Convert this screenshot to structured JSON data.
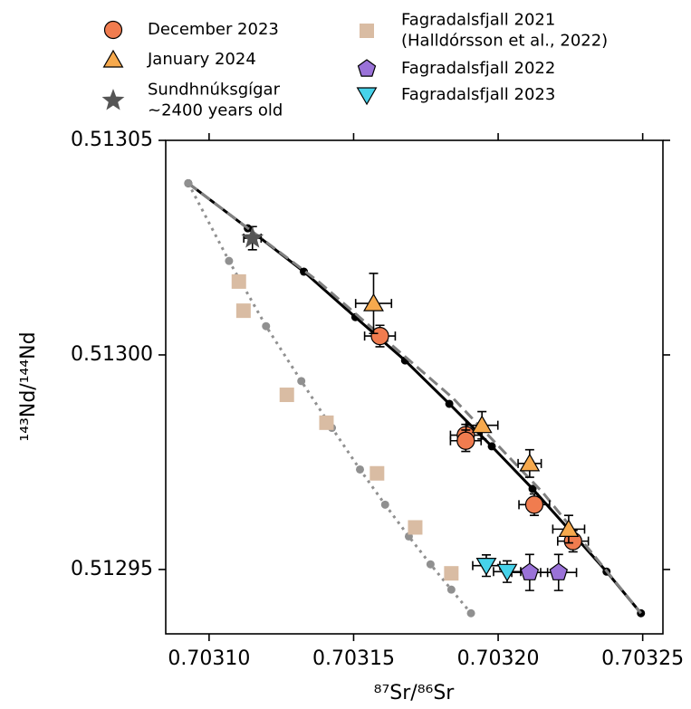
{
  "chart_data": {
    "type": "scatter",
    "x_label": "⁸⁷Sr/⁸⁶Sr",
    "y_label": "¹⁴³Nd/¹⁴⁴Nd",
    "xlim": [
      0.703085,
      0.703257
    ],
    "ylim": [
      0.512935,
      0.51305
    ],
    "xticks": [
      {
        "value": 0.7031,
        "label": "0.70310"
      },
      0.70315,
      {
        "value": 0.7032,
        "label": "0.70320"
      },
      0.70325
    ],
    "yticks": [
      0.51295,
      {
        "value": 0.513,
        "label": "0.51300"
      },
      0.51305
    ],
    "lines": [
      {
        "color": "#000000",
        "style": "solid",
        "markers": true,
        "x": [
          0.7030928,
          0.7031134,
          0.7031328,
          0.7031506,
          0.7031678,
          0.7031831,
          0.7031978,
          0.7032119,
          0.7032375,
          0.7032494
        ],
        "y": [
          0.51304,
          0.5130295,
          0.5130194,
          0.5130088,
          0.5129987,
          0.5129886,
          0.5129787,
          0.5129688,
          0.5129495,
          0.5129398
        ]
      },
      {
        "color": "#808080",
        "style": "dashed",
        "markers": false,
        "x": [
          0.7030928,
          0.7031375,
          0.7031844,
          0.7032156,
          0.7032494
        ],
        "y": [
          0.51304,
          0.5130173,
          0.5129899,
          0.5129678,
          0.5129398
        ]
      },
      {
        "color": "#909090",
        "style": "dotted",
        "markers": true,
        "x": [
          0.7030928,
          0.7031069,
          0.7031197,
          0.7031319,
          0.7031425,
          0.7031522,
          0.7031609,
          0.7031691,
          0.7031766,
          0.7031838,
          0.7031906
        ],
        "y": [
          0.51304,
          0.5130219,
          0.5130067,
          0.5129939,
          0.512983,
          0.5129733,
          0.5129651,
          0.5129577,
          0.5129512,
          0.5129453,
          0.5129398
        ]
      }
    ],
    "series": [
      {
        "name": "December 2023",
        "color": "#f07c4f",
        "marker": "circle",
        "x": [
          0.7031591,
          0.7031888,
          0.7031888,
          0.7032125,
          0.7032259
        ],
        "y": [
          0.5130044,
          0.5129813,
          0.51298,
          0.5129651,
          0.5129566
        ],
        "xerr": [
          5.3e-06,
          5.3e-06,
          5.3e-06,
          5.3e-06,
          5.3e-06
        ],
        "yerr": [
          2.5e-06,
          2.5e-06,
          2.5e-06,
          2.5e-06,
          2.5e-06
        ]
      },
      {
        "name": "January 2024",
        "color": "#f6a94d",
        "marker": "triangle-up",
        "x": [
          0.7031569,
          0.7031944,
          0.7032109,
          0.7032244
        ],
        "y": [
          0.513012,
          0.5129836,
          0.5129747,
          0.5129594
        ],
        "xerr": [
          6.2e-06,
          5.5e-06,
          4e-06,
          5.5e-06
        ],
        "yerr": [
          7e-06,
          3.2e-06,
          3.2e-06,
          3.2e-06
        ]
      },
      {
        "name": "Sundhnúksgígar\n~2400 years old",
        "color": "#555555",
        "marker": "star",
        "x": [
          0.703115
        ],
        "y": [
          0.5130272
        ],
        "xerr": [
          3e-06
        ],
        "yerr": [
          2.7e-06
        ]
      },
      {
        "name": "Fagradalsfjall 2021\n(Halldórsson et al., 2022)",
        "color": "#d9bca3",
        "marker": "square",
        "x": [
          0.7031103,
          0.7031119,
          0.7031269,
          0.7031406,
          0.7031581,
          0.7031713,
          0.7031838
        ],
        "y": [
          0.5130171,
          0.5130103,
          0.5129907,
          0.5129842,
          0.5129724,
          0.5129598,
          0.5129491
        ]
      },
      {
        "name": "Fagradalsfjall 2022",
        "color": "#9a72d8",
        "marker": "pentagon",
        "x": [
          0.7032109,
          0.7032209
        ],
        "y": [
          0.5129493,
          0.5129493
        ],
        "xerr": [
          6.2e-06,
          6.2e-06
        ],
        "yerr": [
          4.2e-06,
          4.2e-06
        ]
      },
      {
        "name": "Fagradalsfjall 2023",
        "color": "#46d2ea",
        "marker": "triangle-down",
        "x": [
          0.7031959,
          0.7032031
        ],
        "y": [
          0.5129509,
          0.5129495
        ],
        "xerr": [
          4.7e-06,
          4.7e-06
        ],
        "yerr": [
          2.5e-06,
          2.5e-06
        ]
      }
    ]
  }
}
